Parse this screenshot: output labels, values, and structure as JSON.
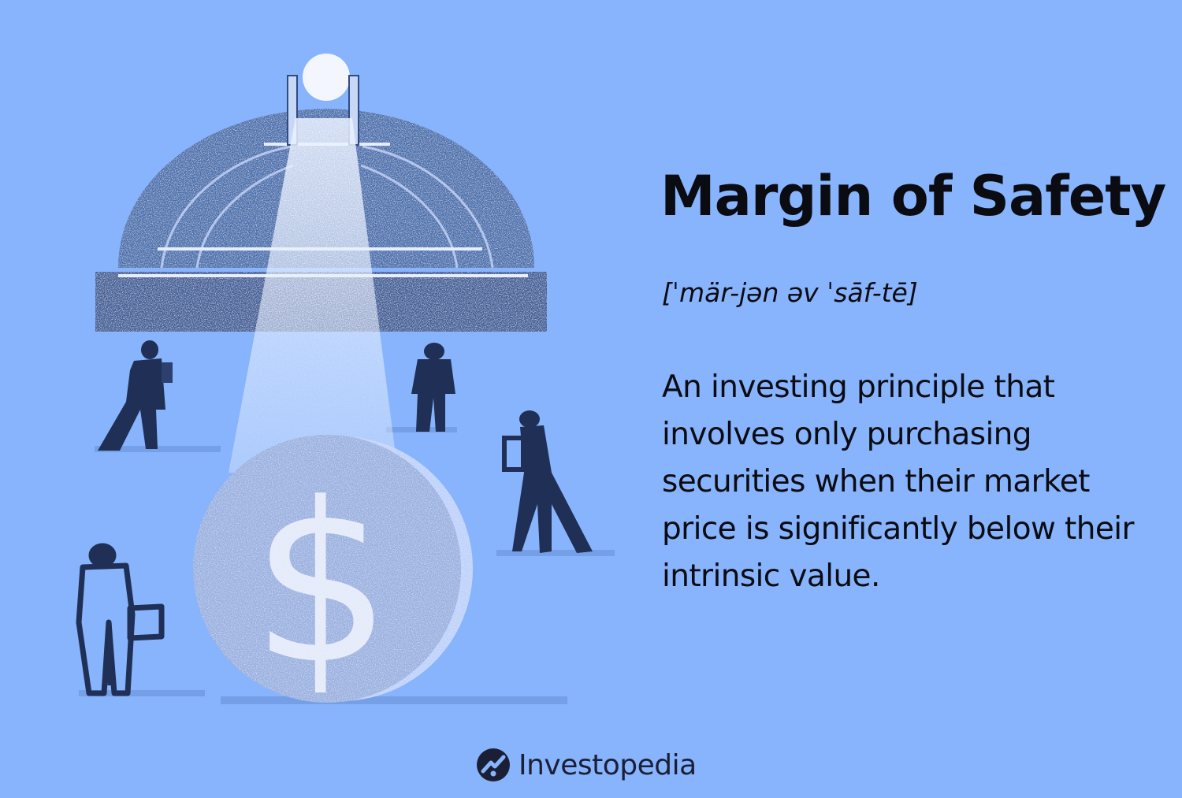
{
  "term": {
    "title": "Margin of Safety",
    "pronunciation": "[ˈmär-jən əv ˈsāf-tē]",
    "definition": "An investing principle that involves only purchasing securities when their market price is significantly below their intrinsic value."
  },
  "illustration": {
    "coin_symbol": "$"
  },
  "brand": {
    "name": "Investopedia"
  },
  "colors": {
    "background": "#87b4fc",
    "dome": "#4a6fae",
    "dome_dark": "#2f4c82",
    "coin": "#6f8fcf",
    "figures": "#1f2f55",
    "text": "#0b0b12",
    "brand_text": "#1b1f36"
  }
}
